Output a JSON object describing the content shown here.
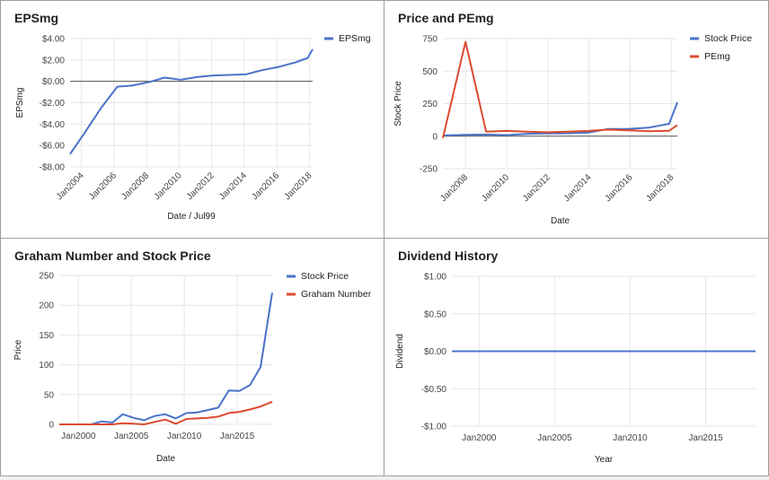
{
  "chart_data": [
    {
      "type": "line",
      "title": "EPSmg",
      "xlabel": "Date / Jul99",
      "ylabel": "EPSmg",
      "xlim": [
        2003.3,
        2018.2
      ],
      "ylim": [
        -8,
        4
      ],
      "yticks": [
        4,
        2,
        0,
        -2,
        -4,
        -6,
        -8
      ],
      "ytick_labels": [
        "$4.00",
        "$2.00",
        "$0.00",
        "-$2.00",
        "-$4.00",
        "-$6.00",
        "-$8.00"
      ],
      "xticks": [
        2004,
        2006,
        2008,
        2010,
        2012,
        2014,
        2016,
        2018
      ],
      "xtick_labels": [
        "Jan2004",
        "Jan2006",
        "Jan2008",
        "Jan2010",
        "Jan2012",
        "Jan2014",
        "Jan2016",
        "Jan2018"
      ],
      "x_labels_rotated": true,
      "legend_position": "top-right",
      "baseline": 0,
      "series": [
        {
          "name": "EPSmg",
          "color": "#4a73c9",
          "x": [
            2003.3,
            2004.2,
            2005.2,
            2006.2,
            2007.1,
            2008.2,
            2009.1,
            2010.1,
            2011.1,
            2012.1,
            2013.1,
            2014.1,
            2015.1,
            2016.1,
            2017.1,
            2017.9,
            2018.2
          ],
          "y": [
            -6.8,
            -4.8,
            -2.5,
            -0.5,
            -0.4,
            -0.05,
            0.35,
            0.15,
            0.4,
            0.55,
            0.6,
            0.65,
            1.05,
            1.35,
            1.75,
            2.2,
            3.0
          ]
        }
      ]
    },
    {
      "type": "line",
      "title": "Price and PEmg",
      "xlabel": "Date",
      "ylabel": "Stock Price",
      "xlim": [
        2006.9,
        2018.3
      ],
      "ylim": [
        -250,
        750
      ],
      "yticks": [
        750,
        500,
        250,
        0,
        -250
      ],
      "ytick_labels": [
        "750",
        "500",
        "250",
        "0",
        "-250"
      ],
      "xticks": [
        2008,
        2010,
        2012,
        2014,
        2016,
        2018
      ],
      "xtick_labels": [
        "Jan2008",
        "Jan2010",
        "Jan2012",
        "Jan2014",
        "Jan2016",
        "Jan2018"
      ],
      "x_labels_rotated": true,
      "legend_position": "top-right",
      "baseline": 0,
      "series": [
        {
          "name": "Stock Price",
          "color": "#4a73c9",
          "x": [
            2006.9,
            2008.0,
            2009.0,
            2010.0,
            2011.0,
            2012.0,
            2013.0,
            2014.0,
            2014.9,
            2015.9,
            2016.9,
            2017.9,
            2018.3
          ],
          "y": [
            5,
            10,
            12,
            8,
            18,
            20,
            22,
            28,
            55,
            55,
            65,
            95,
            260
          ]
        },
        {
          "name": "PEmg",
          "color": "#dc4b2f",
          "x": [
            2006.9,
            2008.0,
            2009.0,
            2010.0,
            2011.0,
            2012.0,
            2013.0,
            2014.0,
            2014.9,
            2015.9,
            2016.9,
            2017.9,
            2018.3
          ],
          "y": [
            -15,
            725,
            35,
            40,
            35,
            30,
            35,
            40,
            50,
            45,
            38,
            42,
            85
          ]
        }
      ]
    },
    {
      "type": "line",
      "title": "Graham Number and Stock Price",
      "xlabel": "Date",
      "ylabel": "Price",
      "xlim": [
        1998.2,
        2018.3
      ],
      "ylim": [
        0,
        250
      ],
      "yticks": [
        250,
        200,
        150,
        100,
        50,
        0
      ],
      "ytick_labels": [
        "250",
        "200",
        "150",
        "100",
        "50",
        "0"
      ],
      "xticks": [
        2000,
        2005,
        2010,
        2015
      ],
      "xtick_labels": [
        "Jan2000",
        "Jan2005",
        "Jan2010",
        "Jan2015"
      ],
      "x_labels_rotated": false,
      "legend_position": "top-right",
      "series": [
        {
          "name": "Stock Price",
          "color": "#4a73c9",
          "x": [
            1998.2,
            1999.2,
            2000.2,
            2001.2,
            2002.2,
            2003.2,
            2004.2,
            2005.2,
            2006.2,
            2007.2,
            2008.2,
            2009.2,
            2010.2,
            2011.2,
            2012.2,
            2013.2,
            2014.2,
            2015.2,
            2016.2,
            2017.2,
            2018.3
          ],
          "y": [
            0,
            0,
            0,
            0,
            5,
            3,
            17,
            11,
            7,
            14,
            17,
            10,
            19,
            20,
            24,
            28,
            57,
            56,
            66,
            96,
            221
          ]
        },
        {
          "name": "Graham Number",
          "color": "#dc4b2f",
          "x": [
            1998.2,
            1999.2,
            2000.2,
            2001.2,
            2002.2,
            2003.2,
            2004.2,
            2005.2,
            2006.2,
            2007.2,
            2008.2,
            2009.2,
            2010.2,
            2011.2,
            2012.2,
            2013.2,
            2014.2,
            2015.2,
            2016.2,
            2017.2,
            2018.3
          ],
          "y": [
            0,
            0,
            0,
            0,
            0,
            0,
            2,
            1,
            0,
            4,
            8,
            1,
            9,
            10,
            11,
            13,
            19,
            21,
            25,
            30,
            38
          ]
        }
      ]
    },
    {
      "type": "line",
      "title": "Dividend History",
      "xlabel": "Year",
      "ylabel": "Dividend",
      "xlim": [
        1998.2,
        2018.3
      ],
      "ylim": [
        -1,
        1
      ],
      "yticks": [
        1,
        0.5,
        0,
        -0.5,
        -1
      ],
      "ytick_labels": [
        "$1.00",
        "$0.50",
        "$0.00",
        "-$0.50",
        "-$1.00"
      ],
      "xticks": [
        2000,
        2005,
        2010,
        2015
      ],
      "xtick_labels": [
        "Jan2000",
        "Jan2005",
        "Jan2010",
        "Jan2015"
      ],
      "x_labels_rotated": false,
      "series": [
        {
          "color": "#4a73c9",
          "x": [
            1998.2,
            2018.3
          ],
          "y": [
            0,
            0
          ]
        }
      ]
    }
  ]
}
